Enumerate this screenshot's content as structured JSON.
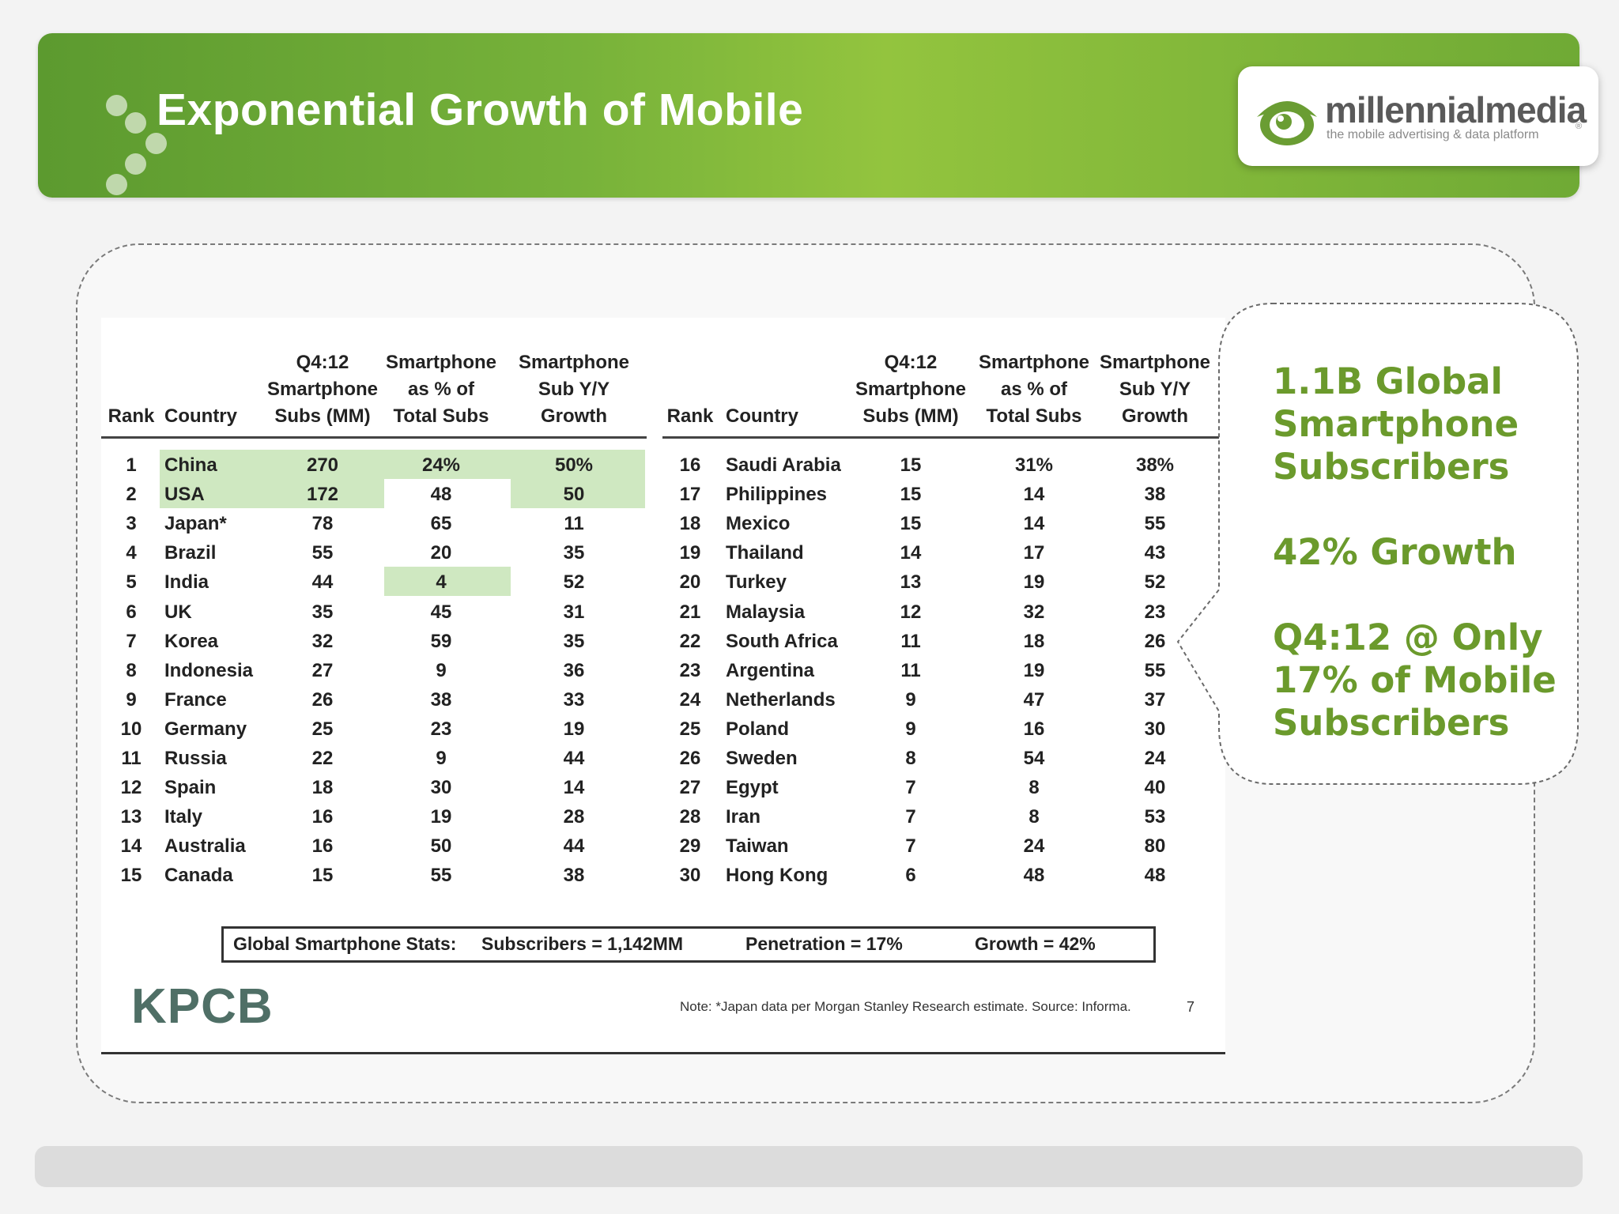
{
  "title": "Exponential Growth of Mobile",
  "logo": {
    "name": "millennialmedia",
    "tagline": "the mobile advertising & data platform",
    "mark": "®"
  },
  "colors": {
    "banner_green": "#77b23a",
    "callout_green": "#6b9a2c",
    "highlight": "#cfe8c1"
  },
  "table": {
    "headers": {
      "rank": "Rank",
      "country": "Country",
      "subs": [
        "Q4:12",
        "Smartphone",
        "Subs (MM)"
      ],
      "pct": [
        "Smartphone",
        "as % of",
        "Total Subs"
      ],
      "growth": [
        "Smartphone",
        "Sub Y/Y",
        "Growth"
      ]
    },
    "left_rows": [
      {
        "rank": "1",
        "country": "China",
        "subs": "270",
        "pct": "24%",
        "growth": "50%"
      },
      {
        "rank": "2",
        "country": "USA",
        "subs": "172",
        "pct": "48",
        "growth": "50"
      },
      {
        "rank": "3",
        "country": "Japan*",
        "subs": "78",
        "pct": "65",
        "growth": "11"
      },
      {
        "rank": "4",
        "country": "Brazil",
        "subs": "55",
        "pct": "20",
        "growth": "35"
      },
      {
        "rank": "5",
        "country": "India",
        "subs": "44",
        "pct": "4",
        "growth": "52"
      },
      {
        "rank": "6",
        "country": "UK",
        "subs": "35",
        "pct": "45",
        "growth": "31"
      },
      {
        "rank": "7",
        "country": "Korea",
        "subs": "32",
        "pct": "59",
        "growth": "35"
      },
      {
        "rank": "8",
        "country": "Indonesia",
        "subs": "27",
        "pct": "9",
        "growth": "36"
      },
      {
        "rank": "9",
        "country": "France",
        "subs": "26",
        "pct": "38",
        "growth": "33"
      },
      {
        "rank": "10",
        "country": "Germany",
        "subs": "25",
        "pct": "23",
        "growth": "19"
      },
      {
        "rank": "11",
        "country": "Russia",
        "subs": "22",
        "pct": "9",
        "growth": "44"
      },
      {
        "rank": "12",
        "country": "Spain",
        "subs": "18",
        "pct": "30",
        "growth": "14"
      },
      {
        "rank": "13",
        "country": "Italy",
        "subs": "16",
        "pct": "19",
        "growth": "28"
      },
      {
        "rank": "14",
        "country": "Australia",
        "subs": "16",
        "pct": "50",
        "growth": "44"
      },
      {
        "rank": "15",
        "country": "Canada",
        "subs": "15",
        "pct": "55",
        "growth": "38"
      }
    ],
    "right_rows": [
      {
        "rank": "16",
        "country": "Saudi Arabia",
        "subs": "15",
        "pct": "31%",
        "growth": "38%"
      },
      {
        "rank": "17",
        "country": "Philippines",
        "subs": "15",
        "pct": "14",
        "growth": "38"
      },
      {
        "rank": "18",
        "country": "Mexico",
        "subs": "15",
        "pct": "14",
        "growth": "55"
      },
      {
        "rank": "19",
        "country": "Thailand",
        "subs": "14",
        "pct": "17",
        "growth": "43"
      },
      {
        "rank": "20",
        "country": "Turkey",
        "subs": "13",
        "pct": "19",
        "growth": "52"
      },
      {
        "rank": "21",
        "country": "Malaysia",
        "subs": "12",
        "pct": "32",
        "growth": "23"
      },
      {
        "rank": "22",
        "country": "South Africa",
        "subs": "11",
        "pct": "18",
        "growth": "26"
      },
      {
        "rank": "23",
        "country": "Argentina",
        "subs": "11",
        "pct": "19",
        "growth": "55"
      },
      {
        "rank": "24",
        "country": "Netherlands",
        "subs": "9",
        "pct": "47",
        "growth": "37"
      },
      {
        "rank": "25",
        "country": "Poland",
        "subs": "9",
        "pct": "16",
        "growth": "30"
      },
      {
        "rank": "26",
        "country": "Sweden",
        "subs": "8",
        "pct": "54",
        "growth": "24"
      },
      {
        "rank": "27",
        "country": "Egypt",
        "subs": "7",
        "pct": "8",
        "growth": "40"
      },
      {
        "rank": "28",
        "country": "Iran",
        "subs": "7",
        "pct": "8",
        "growth": "53"
      },
      {
        "rank": "29",
        "country": "Taiwan",
        "subs": "7",
        "pct": "24",
        "growth": "80"
      },
      {
        "rank": "30",
        "country": "Hong Kong",
        "subs": "6",
        "pct": "48",
        "growth": "48"
      }
    ],
    "highlighted_cells": [
      {
        "row": 0,
        "cols": [
          "country",
          "subs",
          "pct",
          "growth"
        ]
      },
      {
        "row": 1,
        "cols": [
          "country",
          "subs",
          "growth"
        ]
      },
      {
        "row": 4,
        "cols": [
          "pct"
        ]
      }
    ]
  },
  "stats": {
    "label": "Global Smartphone Stats:",
    "subscribers": "Subscribers = 1,142MM",
    "penetration": "Penetration = 17%",
    "growth": "Growth = 42%"
  },
  "source_logo": "KPCB",
  "note": "Note: *Japan data per Morgan Stanley Research estimate.  Source: Informa.",
  "page_number": "7",
  "callout": {
    "lines": [
      "1.1B Global",
      "Smartphone",
      "Subscribers",
      "",
      "42% Growth",
      "",
      "Q4:12 @ Only",
      "17% of Mobile",
      "Subscribers"
    ]
  }
}
